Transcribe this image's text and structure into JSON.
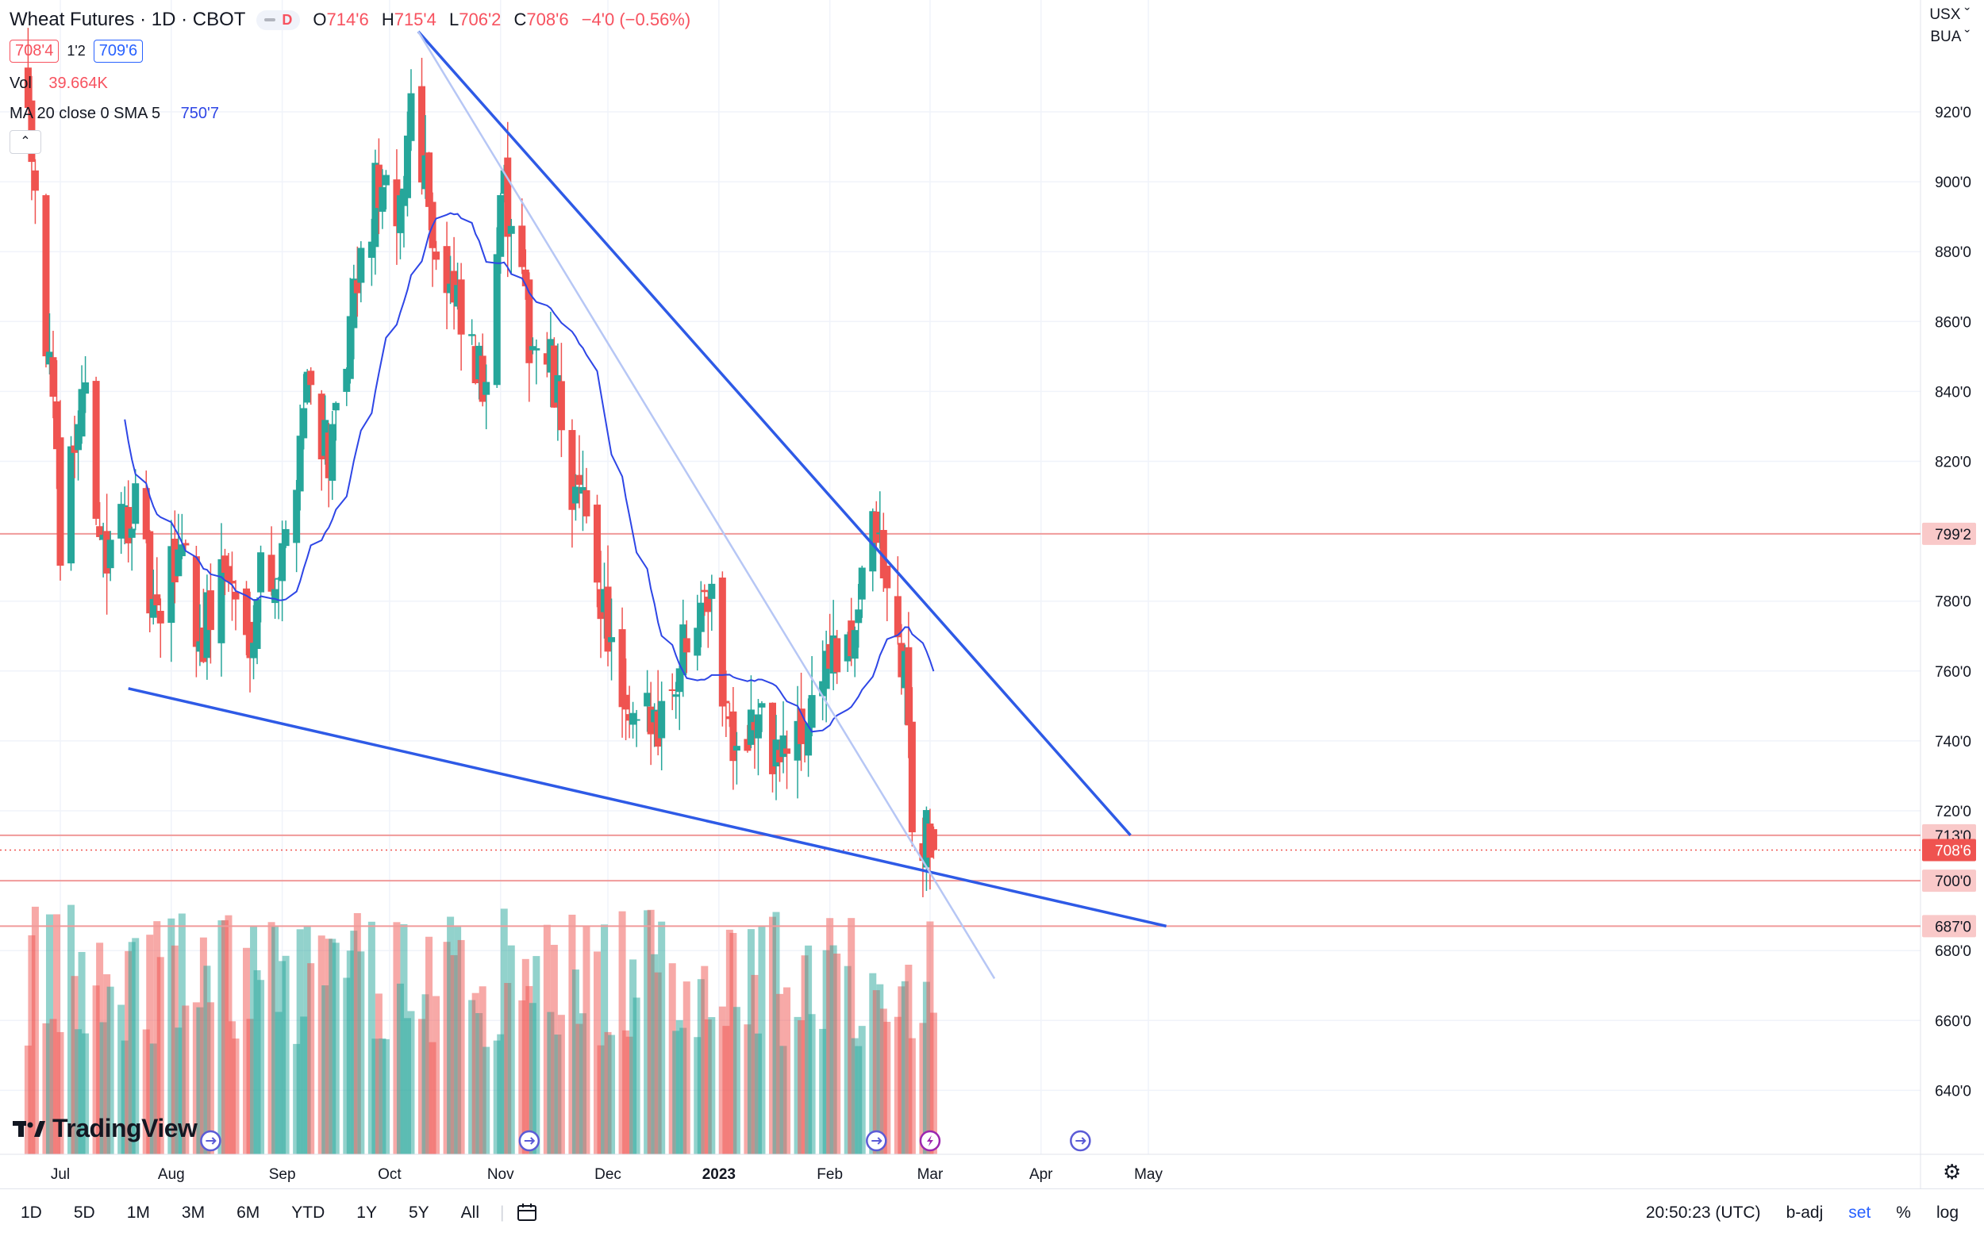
{
  "header": {
    "symbol_title": "Wheat Futures · 1D · CBOT",
    "badge_letter": "D",
    "ohlc": [
      {
        "key": "O",
        "value": "714'6"
      },
      {
        "key": "H",
        "value": "715'4"
      },
      {
        "key": "L",
        "value": "706'2"
      },
      {
        "key": "C",
        "value": "708'6"
      }
    ],
    "change": "−4'0 (−0.56%)",
    "bid": "708'4",
    "spread": "1'2",
    "ask": "709'6"
  },
  "indicators": {
    "vol_label": "Vol",
    "vol_value": "39.664K",
    "ma_label": "MA 20 close 0 SMA 5",
    "ma_value": "750'7"
  },
  "currency_menu": {
    "currency": "USX",
    "unit": "BUA"
  },
  "price_axis": {
    "ticks": [
      {
        "label": "920'0",
        "value": 920
      },
      {
        "label": "900'0",
        "value": 900
      },
      {
        "label": "880'0",
        "value": 880
      },
      {
        "label": "860'0",
        "value": 860
      },
      {
        "label": "840'0",
        "value": 840
      },
      {
        "label": "820'0",
        "value": 820
      },
      {
        "label": "780'0",
        "value": 780
      },
      {
        "label": "760'0",
        "value": 760
      },
      {
        "label": "740'0",
        "value": 740
      },
      {
        "label": "720'0",
        "value": 720
      },
      {
        "label": "680'0",
        "value": 680
      },
      {
        "label": "660'0",
        "value": 660
      },
      {
        "label": "640'0",
        "value": 640
      }
    ],
    "tags": [
      {
        "label": "799'2",
        "value": 799.25,
        "style": "light"
      },
      {
        "label": "713'0",
        "value": 713,
        "style": "light"
      },
      {
        "label": "708'6",
        "value": 708.75,
        "style": "solid"
      },
      {
        "label": "700'0",
        "value": 700,
        "style": "light"
      },
      {
        "label": "687'0",
        "value": 687,
        "style": "light"
      }
    ]
  },
  "time_axis": [
    {
      "label": "Jul",
      "date": "2022-07-01"
    },
    {
      "label": "Aug",
      "date": "2022-08-01"
    },
    {
      "label": "Sep",
      "date": "2022-09-01"
    },
    {
      "label": "Oct",
      "date": "2022-10-01"
    },
    {
      "label": "Nov",
      "date": "2022-11-01"
    },
    {
      "label": "Dec",
      "date": "2022-12-01"
    },
    {
      "label": "2023",
      "date": "2023-01-01",
      "bold": true
    },
    {
      "label": "Feb",
      "date": "2023-02-01"
    },
    {
      "label": "Mar",
      "date": "2023-03-01"
    },
    {
      "label": "Apr",
      "date": "2023-04-01"
    },
    {
      "label": "May",
      "date": "2023-05-01"
    }
  ],
  "chart_data": {
    "type": "candlestick",
    "interval": "1D",
    "y_range": [
      630,
      945
    ],
    "up_color": "#26a69a",
    "down_color": "#ef5350",
    "ma_color": "#2e46e6",
    "trendline_color": "#2e5ae6",
    "level_color": "#f09a9a",
    "levels": [
      799.25,
      713,
      700,
      687
    ],
    "current_price": 708.75,
    "anchors": [
      {
        "date": "2022-06-22",
        "price": 930
      },
      {
        "date": "2022-07-01",
        "price": 800
      },
      {
        "date": "2022-07-07",
        "price": 840
      },
      {
        "date": "2022-07-14",
        "price": 790
      },
      {
        "date": "2022-07-21",
        "price": 810
      },
      {
        "date": "2022-07-28",
        "price": 770
      },
      {
        "date": "2022-08-04",
        "price": 800
      },
      {
        "date": "2022-08-09",
        "price": 768
      },
      {
        "date": "2022-08-16",
        "price": 790
      },
      {
        "date": "2022-08-22",
        "price": 768
      },
      {
        "date": "2022-08-26",
        "price": 790
      },
      {
        "date": "2022-09-01",
        "price": 790
      },
      {
        "date": "2022-09-08",
        "price": 845
      },
      {
        "date": "2022-09-15",
        "price": 820
      },
      {
        "date": "2022-09-22",
        "price": 870
      },
      {
        "date": "2022-09-28",
        "price": 900
      },
      {
        "date": "2022-10-03",
        "price": 880
      },
      {
        "date": "2022-10-07",
        "price": 925
      },
      {
        "date": "2022-10-11",
        "price": 905
      },
      {
        "date": "2022-10-14",
        "price": 880
      },
      {
        "date": "2022-10-20",
        "price": 860
      },
      {
        "date": "2022-10-27",
        "price": 840
      },
      {
        "date": "2022-11-01",
        "price": 900
      },
      {
        "date": "2022-11-08",
        "price": 860
      },
      {
        "date": "2022-11-15",
        "price": 845
      },
      {
        "date": "2022-11-22",
        "price": 810
      },
      {
        "date": "2022-11-28",
        "price": 790
      },
      {
        "date": "2022-12-06",
        "price": 740
      },
      {
        "date": "2022-12-13",
        "price": 745
      },
      {
        "date": "2022-12-20",
        "price": 760
      },
      {
        "date": "2022-12-28",
        "price": 790
      },
      {
        "date": "2023-01-04",
        "price": 745
      },
      {
        "date": "2023-01-11",
        "price": 745
      },
      {
        "date": "2023-01-18",
        "price": 735
      },
      {
        "date": "2023-01-24",
        "price": 740
      },
      {
        "date": "2023-01-31",
        "price": 765
      },
      {
        "date": "2023-02-06",
        "price": 760
      },
      {
        "date": "2023-02-10",
        "price": 790
      },
      {
        "date": "2023-02-14",
        "price": 800
      },
      {
        "date": "2023-02-17",
        "price": 780
      },
      {
        "date": "2023-02-22",
        "price": 760
      },
      {
        "date": "2023-02-24",
        "price": 720
      },
      {
        "date": "2023-02-27",
        "price": 710
      },
      {
        "date": "2023-03-02",
        "price": 708.75
      }
    ],
    "volume_y_max": 80000,
    "trendlines": [
      {
        "from": {
          "date": "2022-10-09",
          "price": 943
        },
        "to": {
          "date": "2023-04-26",
          "price": 713
        },
        "style": "solid"
      },
      {
        "from": {
          "date": "2022-07-20",
          "price": 755
        },
        "to": {
          "date": "2023-05-06",
          "price": 687
        },
        "style": "solid"
      },
      {
        "from": {
          "date": "2022-10-09",
          "price": 943
        },
        "to": {
          "date": "2023-03-19",
          "price": 672
        },
        "style": "light"
      }
    ],
    "events": [
      {
        "date": "2022-08-12",
        "kind": "dividend-split"
      },
      {
        "date": "2022-11-09",
        "kind": "dividend-split"
      },
      {
        "date": "2023-02-14",
        "kind": "dividend-split"
      },
      {
        "date": "2023-03-01",
        "kind": "lightning"
      },
      {
        "date": "2023-04-12",
        "kind": "dividend-split"
      }
    ]
  },
  "branding": {
    "name": "TradingView"
  },
  "bottom_bar": {
    "ranges": [
      "1D",
      "5D",
      "1M",
      "3M",
      "6M",
      "YTD",
      "1Y",
      "5Y",
      "All"
    ],
    "clock": "20:50:23 (UTC)",
    "adj": "b-adj",
    "set": "set",
    "pct": "%",
    "log": "log"
  }
}
